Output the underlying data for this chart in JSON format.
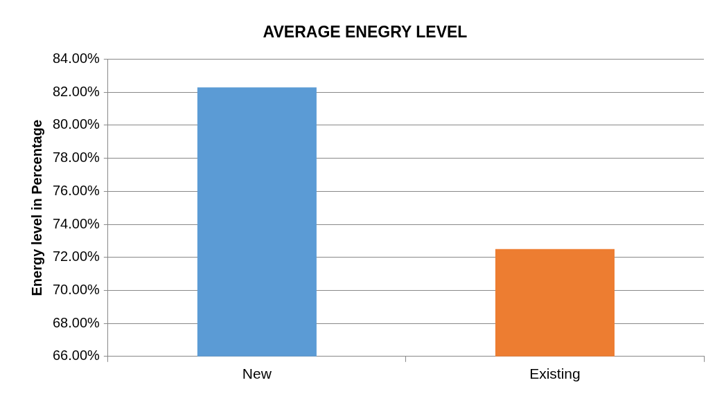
{
  "chart_data": {
    "type": "bar",
    "title": "AVERAGE ENEGRY LEVEL",
    "ylabel": "Energy level in Percentage",
    "categories": [
      "New",
      "Existing"
    ],
    "values": [
      82.3,
      72.5
    ],
    "colors": [
      "#5b9bd5",
      "#ed7d31"
    ],
    "ylim": [
      66,
      84
    ],
    "yticks": [
      {
        "value": 66,
        "label": "66.00%"
      },
      {
        "value": 68,
        "label": "68.00%"
      },
      {
        "value": 70,
        "label": "70.00%"
      },
      {
        "value": 72,
        "label": "72.00%"
      },
      {
        "value": 74,
        "label": "74.00%"
      },
      {
        "value": 76,
        "label": "76.00%"
      },
      {
        "value": 78,
        "label": "78.00%"
      },
      {
        "value": 80,
        "label": "80.00%"
      },
      {
        "value": 82,
        "label": "82.00%"
      },
      {
        "value": 84,
        "label": "84.00%"
      }
    ],
    "grid": "y",
    "legend": false
  }
}
